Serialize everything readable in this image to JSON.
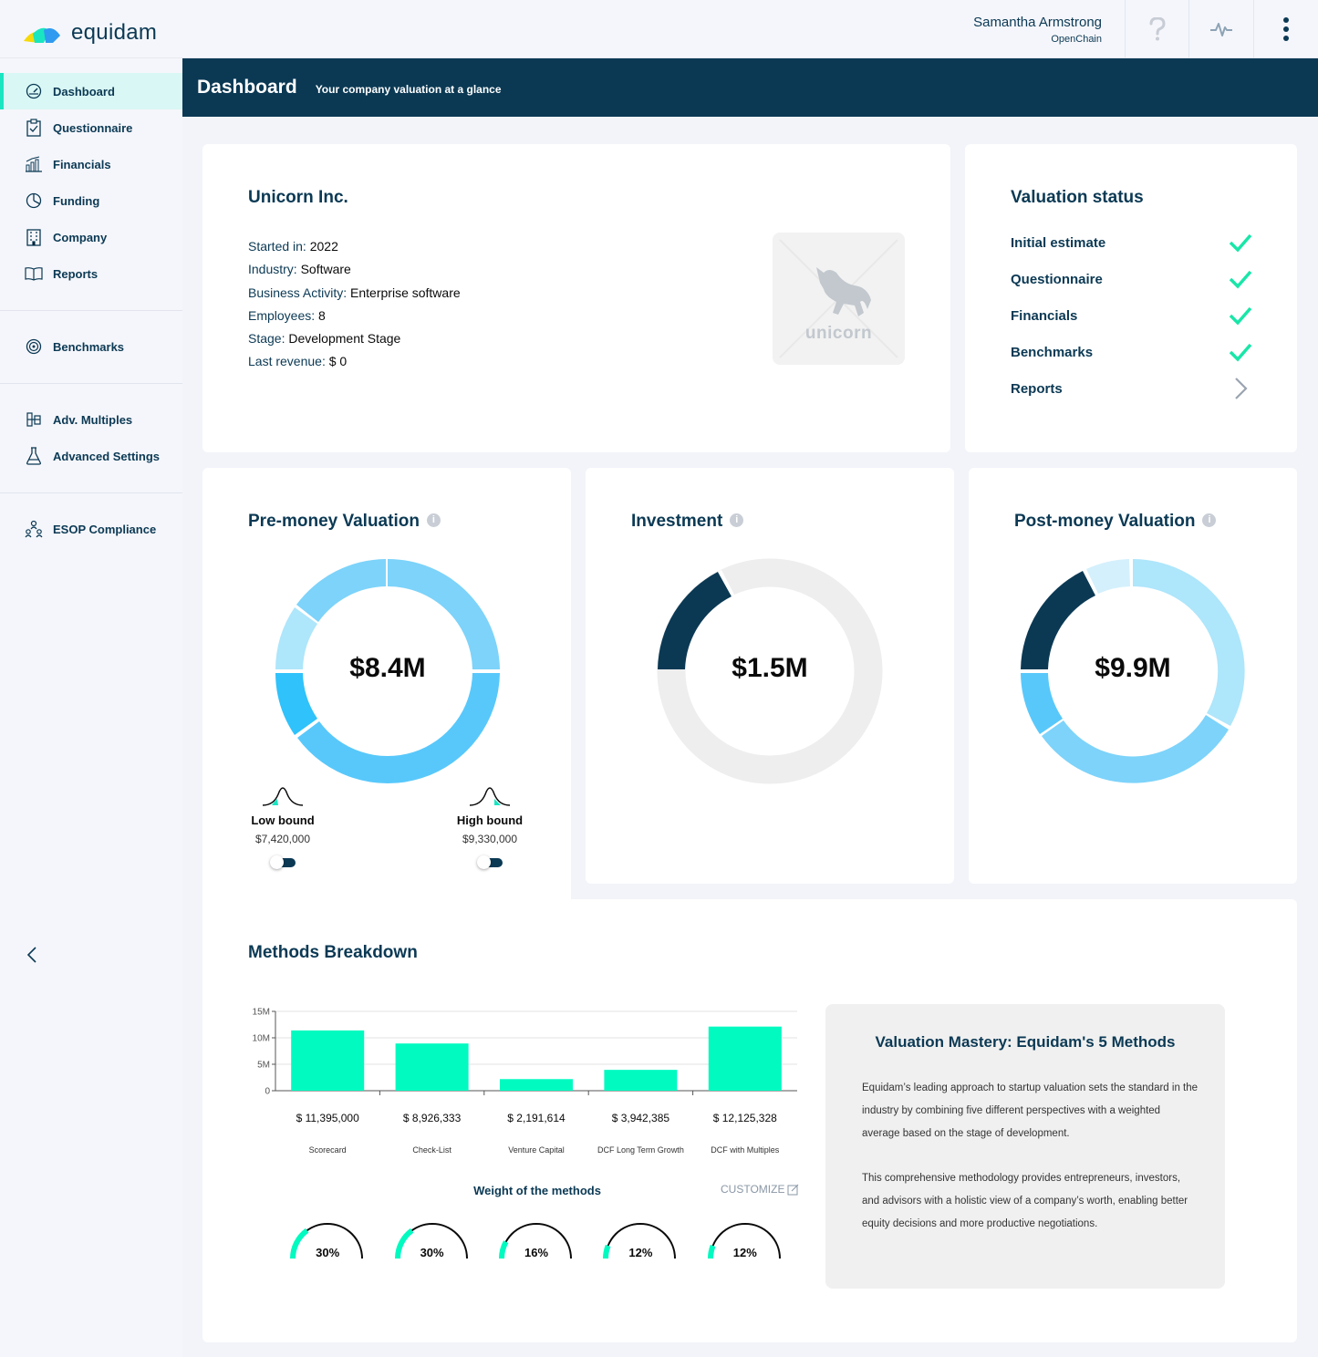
{
  "app": {
    "brand": "equidam"
  },
  "user": {
    "name": "Samantha Armstrong",
    "org": "OpenChain"
  },
  "header": {
    "title": "Dashboard",
    "subtitle": "Your company valuation at a glance"
  },
  "sidebar": {
    "items": [
      {
        "label": "Dashboard",
        "icon": "gauge-icon"
      },
      {
        "label": "Questionnaire",
        "icon": "clipboard-icon"
      },
      {
        "label": "Financials",
        "icon": "bar-chart-icon"
      },
      {
        "label": "Funding",
        "icon": "pie-icon"
      },
      {
        "label": "Company",
        "icon": "building-icon"
      },
      {
        "label": "Reports",
        "icon": "book-icon"
      },
      {
        "label": "Benchmarks",
        "icon": "target-icon"
      },
      {
        "label": "Adv. Multiples",
        "icon": "multiples-icon"
      },
      {
        "label": "Advanced Settings",
        "icon": "flask-icon"
      },
      {
        "label": "ESOP Compliance",
        "icon": "people-icon"
      }
    ]
  },
  "company": {
    "name": "Unicorn Inc.",
    "logo_text": "unicorn",
    "fields": [
      {
        "key": "Started in:",
        "value": "2022"
      },
      {
        "key": "Industry:",
        "value": "Software"
      },
      {
        "key": "Business Activity:",
        "value": "Enterprise software"
      },
      {
        "key": "Employees:",
        "value": "8"
      },
      {
        "key": "Stage:",
        "value": "Development Stage"
      },
      {
        "key": "Last revenue:",
        "value": "$ 0"
      }
    ]
  },
  "status": {
    "title": "Valuation status",
    "items": [
      {
        "label": "Initial estimate",
        "state": "done"
      },
      {
        "label": "Questionnaire",
        "state": "done"
      },
      {
        "label": "Financials",
        "state": "done"
      },
      {
        "label": "Benchmarks",
        "state": "done"
      },
      {
        "label": "Reports",
        "state": "next"
      }
    ]
  },
  "pre_money": {
    "title": "Pre-money Valuation",
    "value": "$8.4M",
    "low": {
      "label": "Low bound",
      "value": "$7,420,000"
    },
    "high": {
      "label": "High bound",
      "value": "$9,330,000"
    }
  },
  "investment": {
    "title": "Investment",
    "value": "$1.5M"
  },
  "post_money": {
    "title": "Post-money Valuation",
    "value": "$9.9M"
  },
  "methods": {
    "title": "Methods Breakdown",
    "weights_title": "Weight of the methods",
    "customize": "CUSTOMIZE",
    "items": [
      {
        "name": "Scorecard",
        "value_label": "$ 11,395,000",
        "value": 11395000,
        "weight": "30%",
        "weight_frac": 0.3
      },
      {
        "name": "Check-List",
        "value_label": "$ 8,926,333",
        "value": 8926333,
        "weight": "30%",
        "weight_frac": 0.3
      },
      {
        "name": "Venture Capital",
        "value_label": "$ 2,191,614",
        "value": 2191614,
        "weight": "16%",
        "weight_frac": 0.16
      },
      {
        "name": "DCF Long Term Growth",
        "value_label": "$ 3,942,385",
        "value": 3942385,
        "weight": "12%",
        "weight_frac": 0.12
      },
      {
        "name": "DCF with Multiples",
        "value_label": "$ 12,125,328",
        "value": 12125328,
        "weight": "12%",
        "weight_frac": 0.12
      }
    ]
  },
  "chart_data": {
    "type": "bar",
    "categories": [
      "Scorecard",
      "Check-List",
      "Venture Capital",
      "DCF Long Term Growth",
      "DCF with Multiples"
    ],
    "values": [
      11395000,
      8926333,
      2191614,
      3942385,
      12125328
    ],
    "yticks": [
      "0",
      "5M",
      "10M",
      "15M"
    ],
    "ylim": [
      0,
      15000000
    ],
    "bar_color": "#00fac0",
    "title": "",
    "xlabel": "",
    "ylabel": ""
  },
  "mastery": {
    "title": "Valuation Mastery: Equidam's 5 Methods",
    "p1": "Equidam’s leading approach to startup valuation sets the standard in the industry by combining five different perspectives with a weighted average based on the stage of development.",
    "p2": "This comprehensive methodology provides entrepreneurs, investors, and advisors with a holistic view of a company’s worth, enabling better equity decisions and more productive negotiations."
  },
  "colors": {
    "navy": "#0b3954",
    "accent": "#19e6c1",
    "sky": "#7dd3fa",
    "light_sky": "#aee6fb",
    "bright_sky": "#2fc2fb",
    "grey": "#eeeeee"
  }
}
